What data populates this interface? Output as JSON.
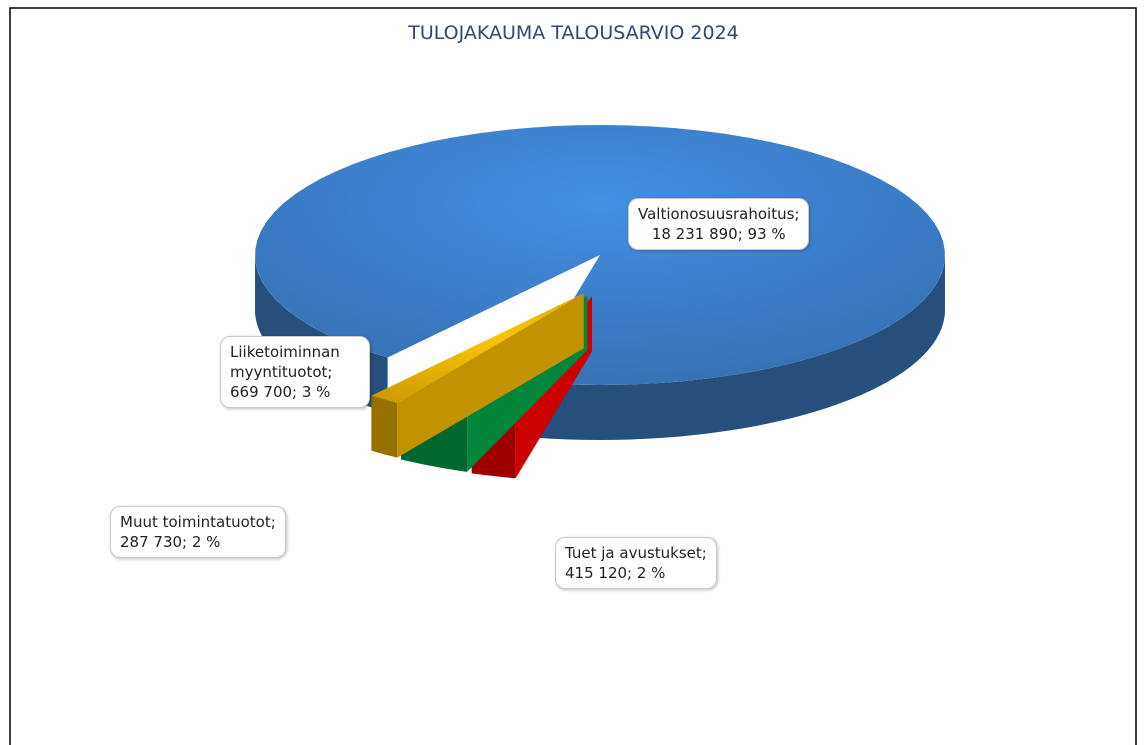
{
  "chart_data": {
    "type": "pie3d",
    "title": "TULOJAKAUMA TALOUSARVIO 2024",
    "categories": [
      "Valtionosuusrahoitus;",
      "Tuet ja avustukset;",
      "Liiketoiminnan myyntituotot;",
      "Muut toimintatuotot;"
    ],
    "values": [
      18231890,
      415120,
      669700,
      287730
    ],
    "value_labels": [
      "18 231 890; 93 %",
      "415 120; 2 %",
      "669 700; 3 %",
      "287 730; 2 %"
    ],
    "colors": [
      "#3d80cc",
      "#ff0000",
      "#00a64a",
      "#f2b600"
    ]
  }
}
